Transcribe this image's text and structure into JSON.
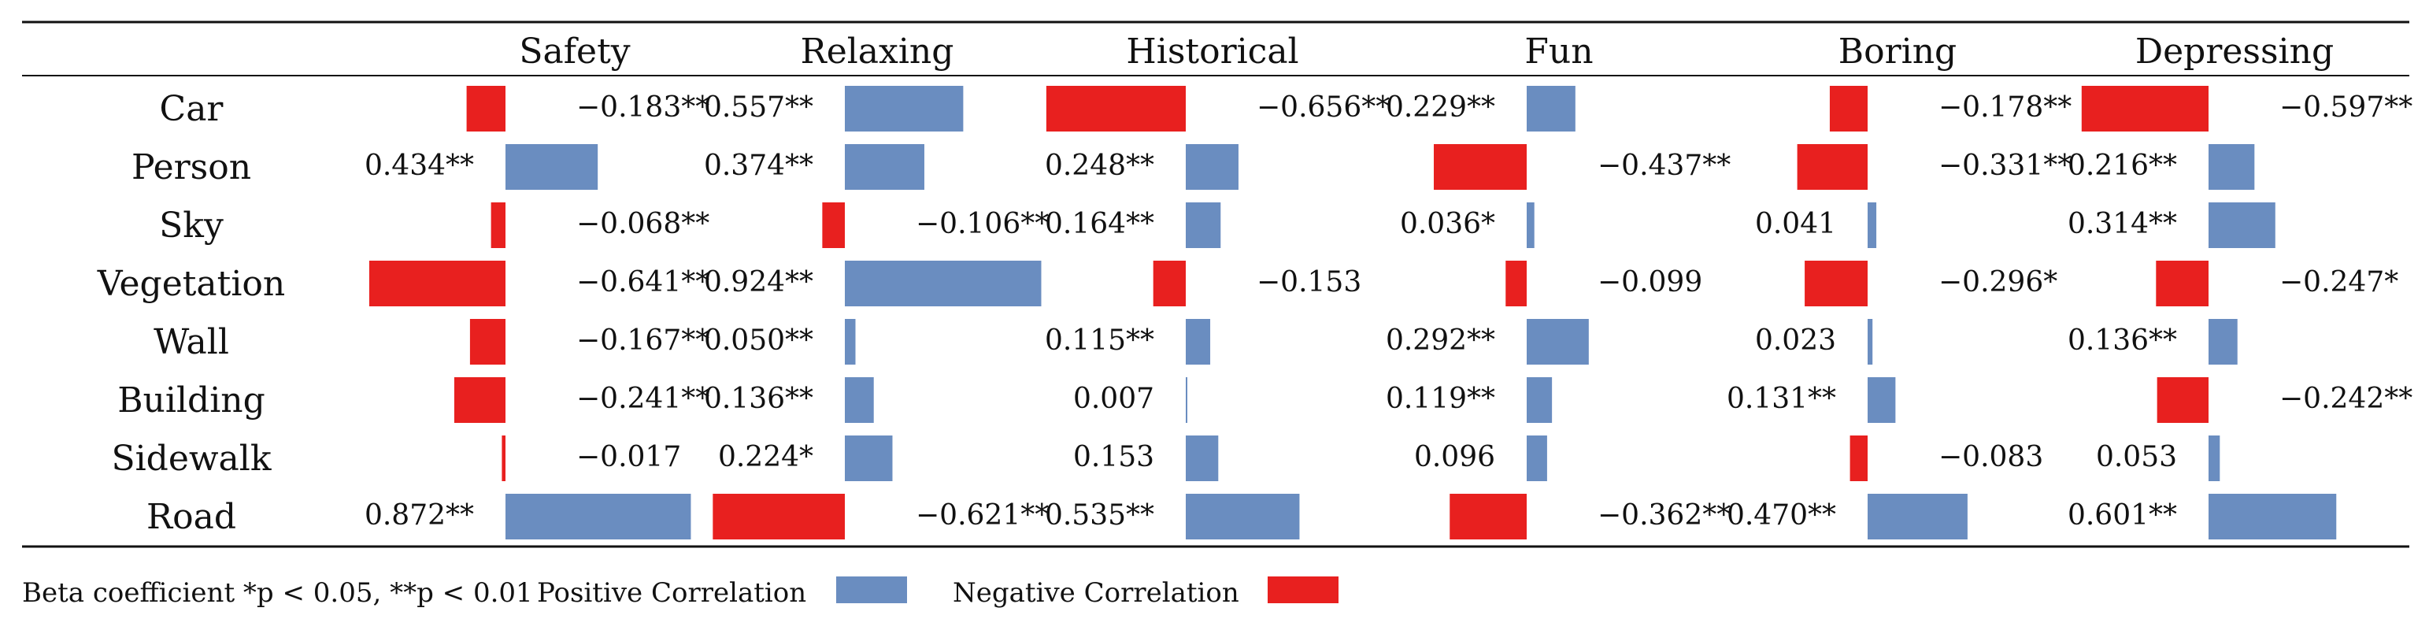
{
  "chart_data": {
    "type": "bar",
    "orientation": "horizontal",
    "categories": [
      "Car",
      "Person",
      "Sky",
      "Vegetation",
      "Wall",
      "Building",
      "Sidewalk",
      "Road"
    ],
    "series": [
      {
        "name": "Safety",
        "values": [
          -0.183,
          0.434,
          -0.068,
          -0.641,
          -0.167,
          -0.241,
          -0.017,
          0.872
        ],
        "labels": [
          "−0.183**",
          "0.434**",
          "−0.068**",
          "−0.641**",
          "−0.167**",
          "−0.241**",
          "−0.017",
          "0.872**"
        ]
      },
      {
        "name": "Relaxing",
        "values": [
          0.557,
          0.374,
          -0.106,
          0.924,
          0.05,
          0.136,
          0.224,
          -0.621
        ],
        "labels": [
          "0.557**",
          "0.374**",
          "−0.106**",
          "0.924**",
          "0.050**",
          "0.136**",
          "0.224*",
          "−0.621**"
        ]
      },
      {
        "name": "Historical",
        "values": [
          -0.656,
          0.248,
          0.164,
          -0.153,
          0.115,
          0.007,
          0.153,
          0.535
        ],
        "labels": [
          "−0.656**",
          "0.248**",
          "0.164**",
          "−0.153",
          "0.115**",
          "0.007",
          "0.153",
          "0.535**"
        ]
      },
      {
        "name": "Fun",
        "values": [
          0.229,
          -0.437,
          0.036,
          -0.099,
          0.292,
          0.119,
          0.096,
          -0.362
        ],
        "labels": [
          "0.229**",
          "−0.437**",
          "0.036*",
          "−0.099",
          "0.292**",
          "0.119**",
          "0.096",
          "−0.362**"
        ]
      },
      {
        "name": "Boring",
        "values": [
          -0.178,
          -0.331,
          0.041,
          -0.296,
          0.023,
          0.131,
          -0.083,
          0.47
        ],
        "labels": [
          "−0.178**",
          "−0.331**",
          "0.041",
          "−0.296*",
          "0.023",
          "0.131**",
          "−0.083",
          "0.470**"
        ]
      },
      {
        "name": "Depressing",
        "values": [
          -0.597,
          0.216,
          0.314,
          -0.247,
          0.136,
          -0.242,
          0.053,
          0.601
        ],
        "labels": [
          "−0.597**",
          "0.216**",
          "0.314**",
          "−0.247*",
          "0.136**",
          "−0.242**",
          "0.053",
          "0.601**"
        ]
      }
    ],
    "footnote": "Beta coefficient *p < 0.05, **p < 0.01",
    "legend": [
      {
        "label": "Positive Correlation",
        "color": "#6a8dc0"
      },
      {
        "label": "Negative Correlation",
        "color": "#e8201f"
      }
    ],
    "colors": {
      "positive": "#6a8dc0",
      "negative": "#e8201f"
    }
  }
}
